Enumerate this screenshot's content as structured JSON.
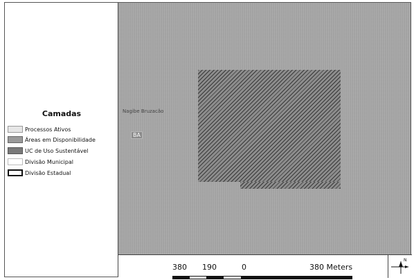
{
  "legend": {
    "title": "Camadas",
    "items": [
      {
        "label": "Processos Ativos",
        "color": "#e6e6e6"
      },
      {
        "label": "Áreas em Disponibilidade",
        "color": "#9a9a9a"
      },
      {
        "label": "UC de Uso Sustentável",
        "color": "#7a7a7a"
      },
      {
        "label": "Divisão Municipal",
        "color": "#ffffff"
      },
      {
        "label": "Divisão Estadual",
        "color": "#ffffff"
      }
    ]
  },
  "map": {
    "region_label": "BA",
    "faint_label": "Nagibe Bruzacão"
  },
  "scale": {
    "ticks": [
      "380",
      "190",
      "0",
      "380 Meters"
    ]
  },
  "north_arrow": {
    "icon": "north-arrow-icon",
    "label": "N"
  }
}
